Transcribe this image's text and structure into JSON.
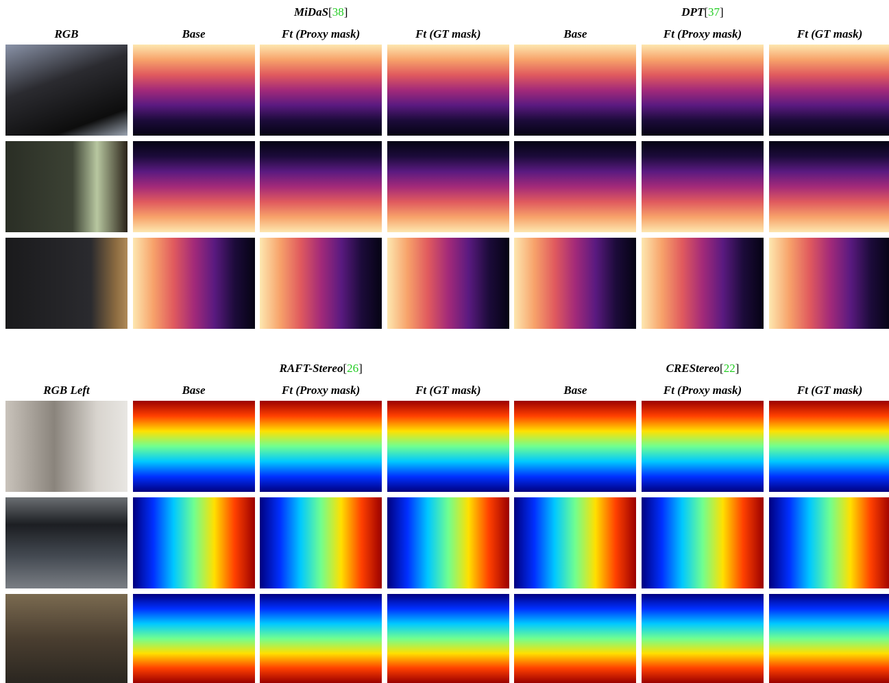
{
  "panels": [
    {
      "groups": [
        {
          "name": "MiDaS",
          "cite": [
            "[",
            "38",
            "]"
          ]
        },
        {
          "name": "DPT",
          "cite": [
            "[",
            "37",
            "]"
          ]
        }
      ],
      "columns": [
        "RGB",
        "Base",
        "Ft (Proxy mask)",
        "Ft (GT mask)",
        "Base",
        "Ft (Proxy mask)",
        "Ft (GT mask)"
      ]
    },
    {
      "groups": [
        {
          "name": "RAFT-Stereo",
          "cite": [
            "[",
            "26",
            "]"
          ]
        },
        {
          "name": "CREStereo",
          "cite": [
            "[",
            "22",
            "]"
          ]
        }
      ],
      "columns": [
        "RGB Left",
        "Base",
        "Ft (Proxy mask)",
        "Ft (GT mask)",
        "Base",
        "Ft (Proxy mask)",
        "Ft (GT mask)"
      ]
    }
  ]
}
